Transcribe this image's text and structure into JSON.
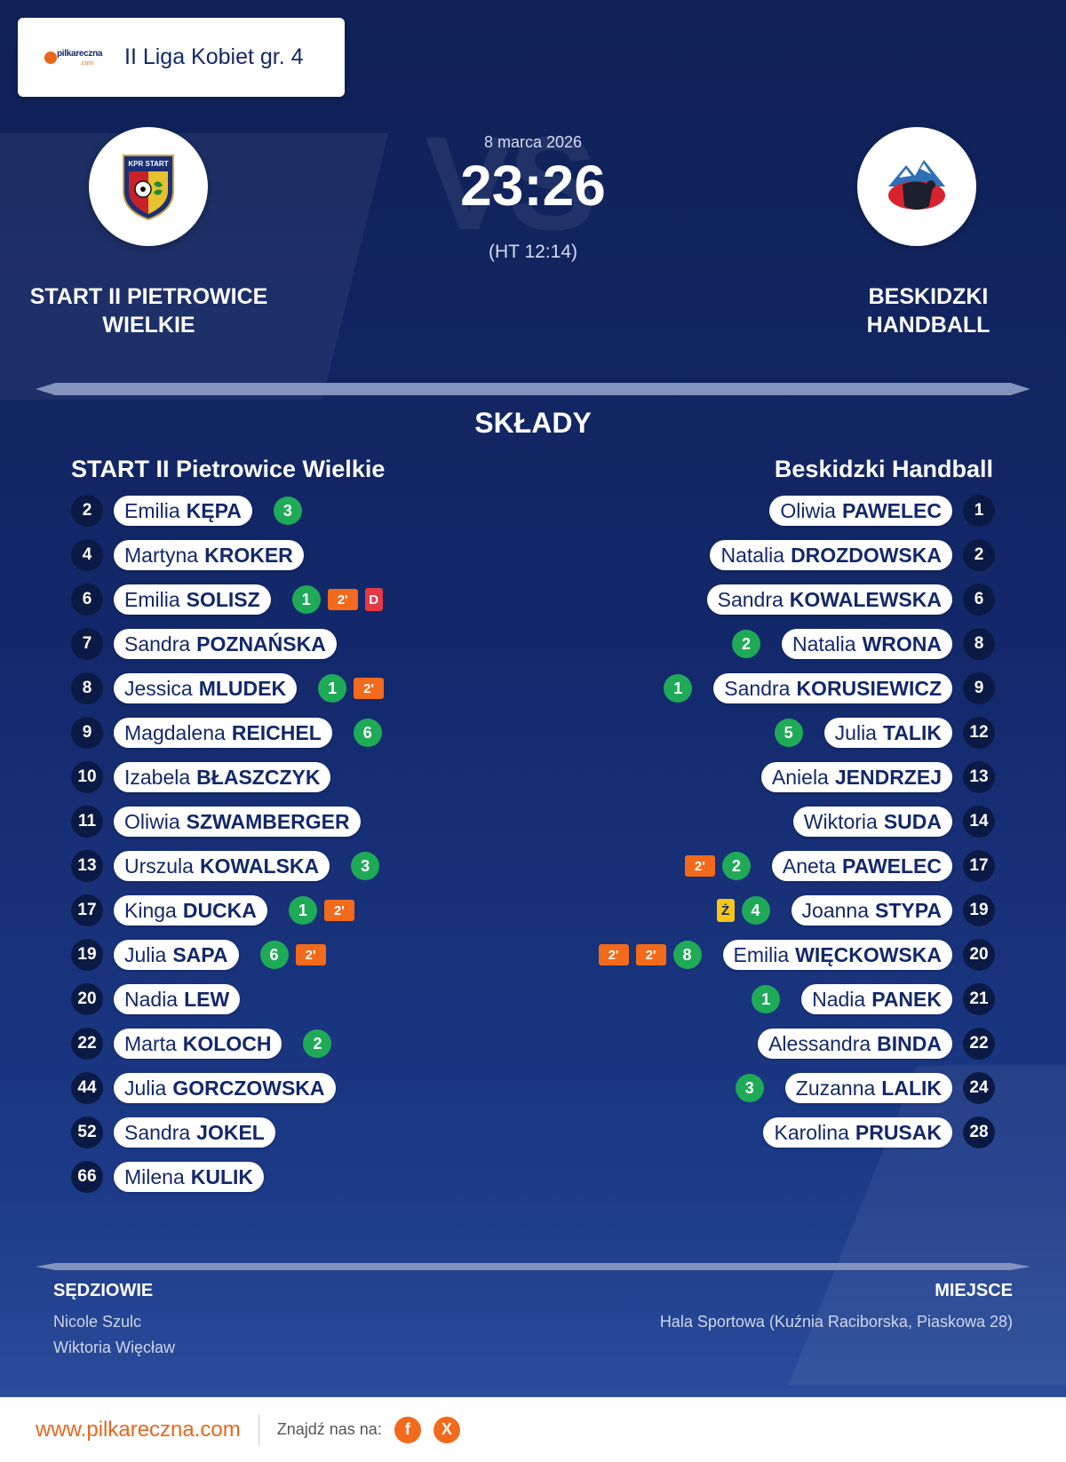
{
  "league": "II Liga Kobiet gr. 4",
  "logo_text": "pilkareczna",
  "logo_sub": ".com",
  "vs_text": "VS",
  "match": {
    "date": "8 marca 2026",
    "score": "23:26",
    "halftime": "(HT 12:14)"
  },
  "home": {
    "name": "START II PIETROWICE WIELKIE",
    "roster_title": "START II Pietrowice Wielkie",
    "logo_text": "KPR START"
  },
  "away": {
    "name": "BESKIDZKI HANDBALL",
    "roster_title": "Beskidzki Handball"
  },
  "section_title": "SKŁADY",
  "home_players": [
    {
      "num": "2",
      "first": "Emilia",
      "last": "KĘPA",
      "goals": "3",
      "pens": 0,
      "card": ""
    },
    {
      "num": "4",
      "first": "Martyna",
      "last": "KROKER",
      "goals": "",
      "pens": 0,
      "card": ""
    },
    {
      "num": "6",
      "first": "Emilia",
      "last": "SOLISZ",
      "goals": "1",
      "pens": 1,
      "card": "D"
    },
    {
      "num": "7",
      "first": "Sandra",
      "last": "POZNAŃSKA",
      "goals": "",
      "pens": 0,
      "card": ""
    },
    {
      "num": "8",
      "first": "Jessica",
      "last": "MLUDEK",
      "goals": "1",
      "pens": 1,
      "card": ""
    },
    {
      "num": "9",
      "first": "Magdalena",
      "last": "REICHEL",
      "goals": "6",
      "pens": 0,
      "card": ""
    },
    {
      "num": "10",
      "first": "Izabela",
      "last": "BŁASZCZYK",
      "goals": "",
      "pens": 0,
      "card": ""
    },
    {
      "num": "11",
      "first": "Oliwia",
      "last": "SZWAMBERGER",
      "goals": "",
      "pens": 0,
      "card": ""
    },
    {
      "num": "13",
      "first": "Urszula",
      "last": "KOWALSKA",
      "goals": "3",
      "pens": 0,
      "card": ""
    },
    {
      "num": "17",
      "first": "Kinga",
      "last": "DUCKA",
      "goals": "1",
      "pens": 1,
      "card": ""
    },
    {
      "num": "19",
      "first": "Julia",
      "last": "SAPA",
      "goals": "6",
      "pens": 1,
      "card": ""
    },
    {
      "num": "20",
      "first": "Nadia",
      "last": "LEW",
      "goals": "",
      "pens": 0,
      "card": ""
    },
    {
      "num": "22",
      "first": "Marta",
      "last": "KOLOCH",
      "goals": "2",
      "pens": 0,
      "card": ""
    },
    {
      "num": "44",
      "first": "Julia",
      "last": "GORCZOWSKA",
      "goals": "",
      "pens": 0,
      "card": ""
    },
    {
      "num": "52",
      "first": "Sandra",
      "last": "JOKEL",
      "goals": "",
      "pens": 0,
      "card": ""
    },
    {
      "num": "66",
      "first": "Milena",
      "last": "KULIK",
      "goals": "",
      "pens": 0,
      "card": ""
    }
  ],
  "away_players": [
    {
      "num": "1",
      "first": "Oliwia",
      "last": "PAWELEC",
      "goals": "",
      "pens": 0,
      "card": ""
    },
    {
      "num": "2",
      "first": "Natalia",
      "last": "DROZDOWSKA",
      "goals": "",
      "pens": 0,
      "card": ""
    },
    {
      "num": "6",
      "first": "Sandra",
      "last": "KOWALEWSKA",
      "goals": "",
      "pens": 0,
      "card": ""
    },
    {
      "num": "8",
      "first": "Natalia",
      "last": "WRONA",
      "goals": "2",
      "pens": 0,
      "card": ""
    },
    {
      "num": "9",
      "first": "Sandra",
      "last": "KORUSIEWICZ",
      "goals": "1",
      "pens": 0,
      "card": ""
    },
    {
      "num": "12",
      "first": "Julia",
      "last": "TALIK",
      "goals": "5",
      "pens": 0,
      "card": ""
    },
    {
      "num": "13",
      "first": "Aniela",
      "last": "JENDRZEJ",
      "goals": "",
      "pens": 0,
      "card": ""
    },
    {
      "num": "14",
      "first": "Wiktoria",
      "last": "SUDA",
      "goals": "",
      "pens": 0,
      "card": ""
    },
    {
      "num": "17",
      "first": "Aneta",
      "last": "PAWELEC",
      "goals": "2",
      "pens": 1,
      "card": ""
    },
    {
      "num": "19",
      "first": "Joanna",
      "last": "STYPA",
      "goals": "4",
      "pens": 0,
      "card": "Ż"
    },
    {
      "num": "20",
      "first": "Emilia",
      "last": "WIĘCKOWSKA",
      "goals": "8",
      "pens": 2,
      "card": ""
    },
    {
      "num": "21",
      "first": "Nadia",
      "last": "PANEK",
      "goals": "1",
      "pens": 0,
      "card": ""
    },
    {
      "num": "22",
      "first": "Alessandra",
      "last": "BINDA",
      "goals": "",
      "pens": 0,
      "card": ""
    },
    {
      "num": "24",
      "first": "Zuzanna",
      "last": "LALIK",
      "goals": "3",
      "pens": 0,
      "card": ""
    },
    {
      "num": "28",
      "first": "Karolina",
      "last": "PRUSAK",
      "goals": "",
      "pens": 0,
      "card": ""
    }
  ],
  "penalty_label": "2'",
  "colors": {
    "goal": "#1faa57",
    "penalty": "#f26a1b",
    "red_card": "#e53946",
    "yellow_card": "#f5c518",
    "background": "#13286a",
    "accent": "#e8671e"
  },
  "referees": {
    "title": "SĘDZIOWIE",
    "names": [
      "Nicole Szulc",
      "Wiktoria Więcław"
    ]
  },
  "venue": {
    "title": "MIEJSCE",
    "text": "Hala Sportowa (Kuźnia Raciborska, Piaskowa 28)"
  },
  "footer": {
    "site": "www.pilkareczna.com",
    "find": "Znajdź nas na:",
    "social": [
      {
        "icon": "facebook-icon",
        "glyph": "f"
      },
      {
        "icon": "x-icon",
        "glyph": "X"
      }
    ]
  }
}
